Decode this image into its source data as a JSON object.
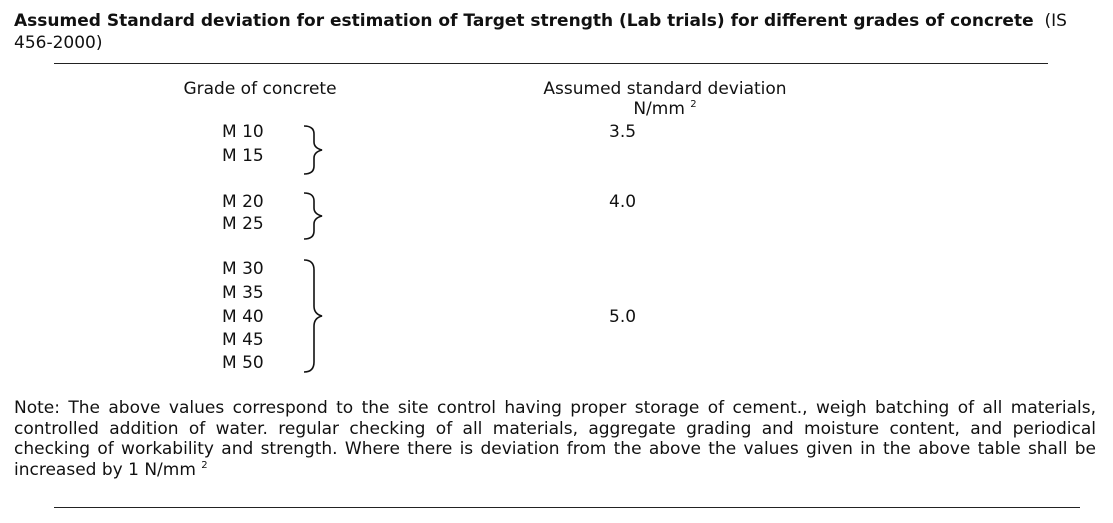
{
  "title": {
    "main": "Assumed Standard deviation for estimation of Target strength (Lab trials) for different grades of concrete",
    "reference": "(IS 456-2000)"
  },
  "headers": {
    "grade": "Grade of concrete",
    "sd": "Assumed standard deviation",
    "unit": "N/mm",
    "unit_sup": "2"
  },
  "groups": [
    {
      "grades": [
        "M 10",
        "M 15"
      ],
      "value": "3.5"
    },
    {
      "grades": [
        "M 20",
        "M 25"
      ],
      "value": "4.0"
    },
    {
      "grades": [
        "M 30",
        "M 35",
        "M 40",
        "M 45",
        "M 50"
      ],
      "value": "5.0"
    }
  ],
  "note": {
    "text": "Note: The above values correspond to the site control having proper storage of cement., weigh batching of all materials, controlled addition of water. regular checking of all materials, aggregate grading and moisture content, and periodical checking of workability and strength.  Where there is deviation from the above the values given in the above table shall be increased by 1 N/mm",
    "sup": "2"
  }
}
